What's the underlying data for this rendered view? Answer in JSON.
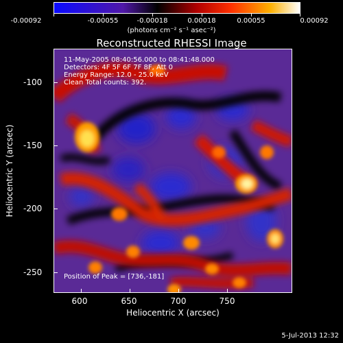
{
  "colorbar": {
    "tick_labels": [
      "-0.00092",
      "-0.00055",
      "-0.00018",
      "0.00018",
      "0.00055",
      "0.00092"
    ],
    "units": "(photons cm⁻² s⁻¹ asec⁻²)",
    "colors": [
      "#0a0aff",
      "#5018a8",
      "#000000",
      "#b00000",
      "#ff3000",
      "#ffb000",
      "#ffffff"
    ]
  },
  "title": "Reconstructed RHESSI Image",
  "annotation": {
    "line1": "11-May-2005 08:40:56.000 to 08:41:48.000",
    "line2": "Detectors: 4F 5F 6F 7F 8F, Att 0",
    "line3": "Energy Range: 12.0 - 25.0 keV",
    "line4": "Clean    Total counts: 392.",
    "peak": "Position of Peak = [736,-181]"
  },
  "axes": {
    "xlabel": "Heliocentric X (arcsec)",
    "ylabel": "Heliocentric Y (arcsec)",
    "x_ticks": [
      "600",
      "650",
      "700",
      "750"
    ],
    "y_ticks": [
      "-100",
      "-150",
      "-200",
      "-250"
    ]
  },
  "footer": {
    "timestamp": "5-Jul-2013 12:32"
  }
}
